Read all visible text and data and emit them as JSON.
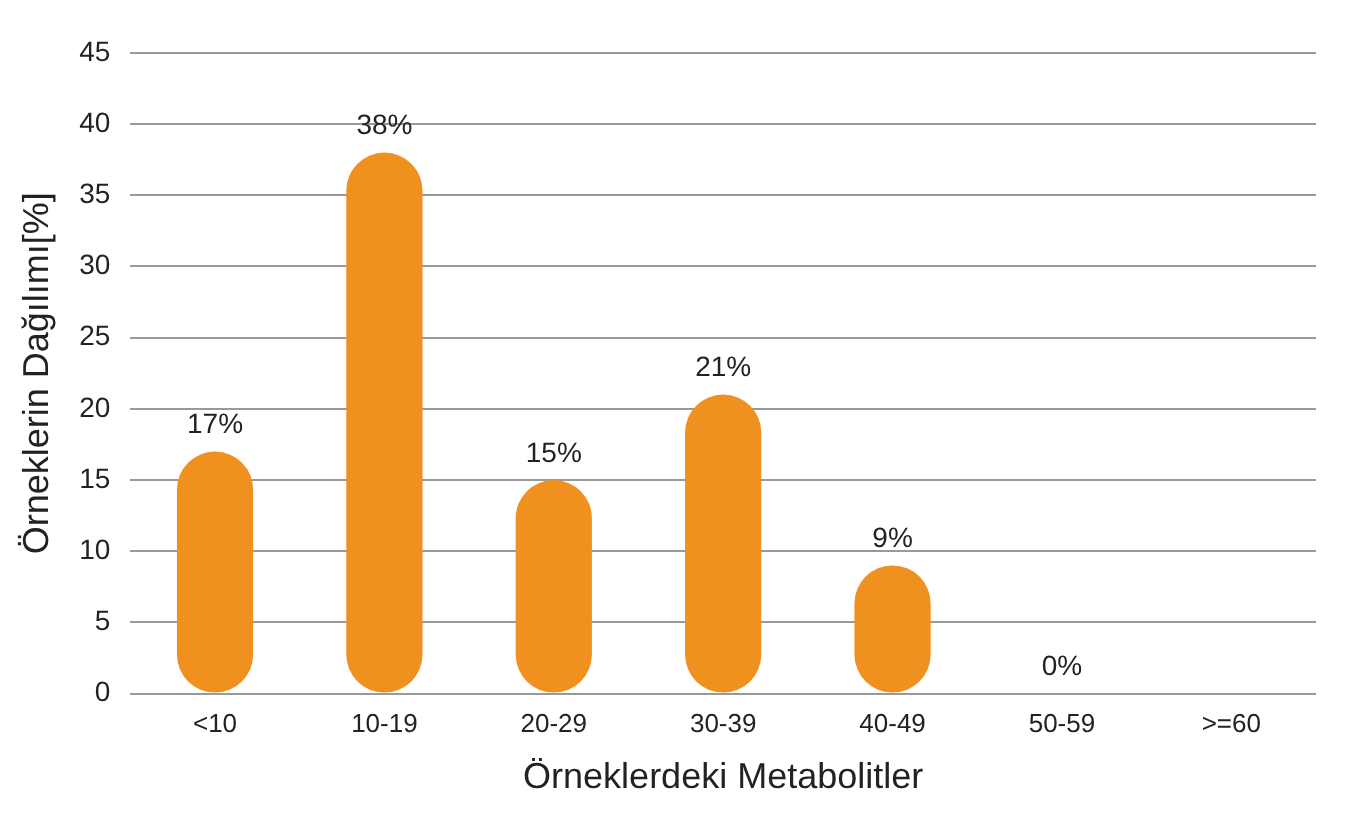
{
  "chart_data": {
    "type": "bar",
    "xlabel": "Örneklerdeki Metabolitler",
    "ylabel": "Örneklerin Dağılımı[%]",
    "categories": [
      "<10",
      "10-19",
      "20-29",
      "30-39",
      "40-49",
      "50-59",
      ">=60"
    ],
    "values": [
      17,
      38,
      15,
      21,
      9,
      0,
      0
    ],
    "value_labels": [
      "17%",
      "38%",
      "15%",
      "21%",
      "9%",
      "0%",
      null
    ],
    "color": "#f0901e",
    "ylim": [
      0,
      45
    ],
    "yticks": [
      0,
      5,
      10,
      15,
      20,
      25,
      30,
      35,
      40,
      45
    ],
    "grid": "y",
    "legend": false
  }
}
